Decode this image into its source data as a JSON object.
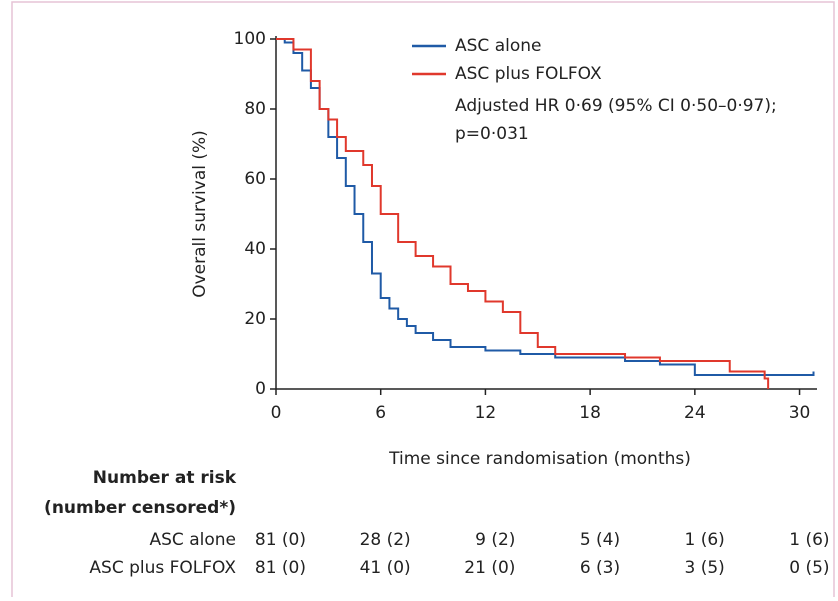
{
  "chart_data": {
    "type": "step",
    "ylabel": "Overall survival (%)",
    "xlabel": "Time since randomisation (months)",
    "annotation": [
      "Adjusted HR 0·69 (95% CI 0·50–0·97);",
      "p=0·031"
    ],
    "xlim": [
      0,
      31
    ],
    "xticks": [
      0,
      6,
      12,
      18,
      24,
      30
    ],
    "ylim": [
      0,
      100
    ],
    "yticks": [
      0,
      20,
      40,
      60,
      80,
      100
    ],
    "series": [
      {
        "name": "ASC alone",
        "color": "#1f5aa6",
        "x": [
          0,
          0.5,
          1,
          1.5,
          2,
          2.5,
          3,
          3.5,
          4,
          4.5,
          5,
          5.5,
          6,
          6.5,
          7,
          7.5,
          8,
          9,
          10,
          12,
          14,
          16,
          18,
          20,
          22,
          24,
          28,
          30.8
        ],
        "values": [
          100,
          99,
          96,
          91,
          86,
          80,
          72,
          66,
          58,
          50,
          42,
          33,
          26,
          23,
          20,
          18,
          16,
          14,
          12,
          11,
          10,
          9,
          9,
          8,
          7,
          4,
          4,
          5
        ]
      },
      {
        "name": "ASC plus FOLFOX",
        "color": "#e0382c",
        "x": [
          0,
          1,
          2,
          2.5,
          3,
          3.5,
          4,
          5,
          5.5,
          6,
          7,
          8,
          9,
          10,
          11,
          12,
          13,
          14,
          15,
          16,
          18,
          20,
          22,
          24,
          26,
          28,
          28.2
        ],
        "values": [
          100,
          97,
          88,
          80,
          77,
          72,
          68,
          64,
          58,
          50,
          42,
          38,
          35,
          30,
          28,
          25,
          22,
          16,
          12,
          10,
          10,
          9,
          8,
          8,
          5,
          3,
          0
        ]
      }
    ]
  },
  "risk_table": {
    "title": "Number at risk",
    "subtitle": "(number censored*)",
    "rows": [
      {
        "label": "ASC alone",
        "cells": [
          "81 (0)",
          "28 (2)",
          "9 (2)",
          "5 (4)",
          "1 (6)",
          "1 (6)"
        ]
      },
      {
        "label": "ASC plus FOLFOX",
        "cells": [
          "81 (0)",
          "41 (0)",
          "21 (0)",
          "6 (3)",
          "3 (5)",
          "0 (5)"
        ]
      }
    ]
  }
}
